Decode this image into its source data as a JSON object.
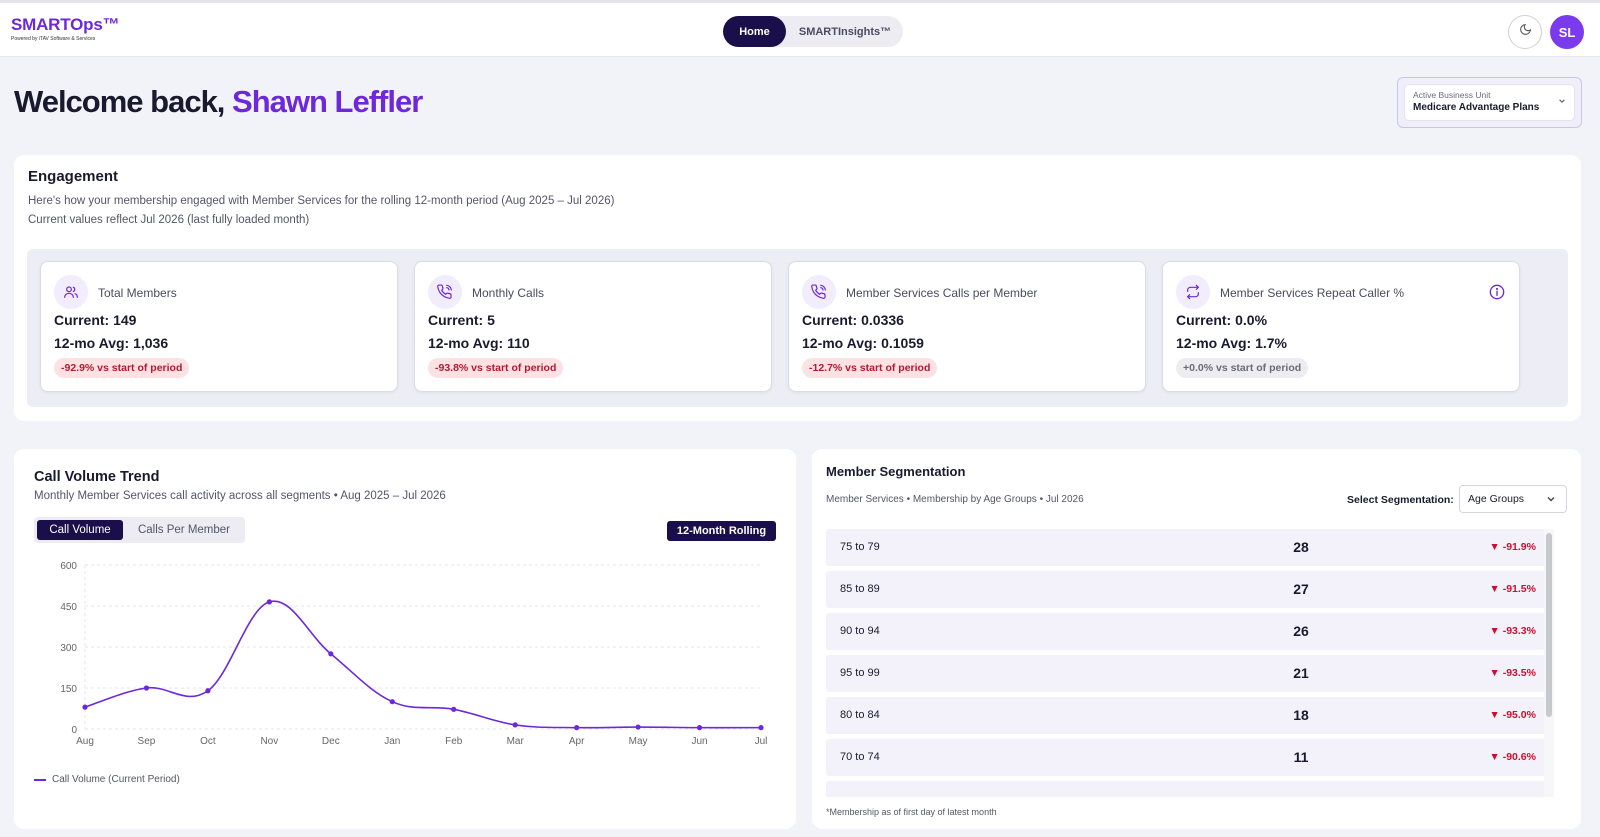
{
  "header": {
    "logo": "SMARTOps™",
    "logo_sub": "Powered by iTAV Software & Services",
    "nav": [
      {
        "label": "Home",
        "active": true
      },
      {
        "label": "SMARTInsights™",
        "active": false
      }
    ],
    "avatar_initials": "SL",
    "theme_icon": "moon-icon"
  },
  "welcome": {
    "prefix": "Welcome back,",
    "name": "Shawn Leffler"
  },
  "business_unit": {
    "label": "Active Business Unit",
    "value": "Medicare Advantage Plans"
  },
  "engagement": {
    "title": "Engagement",
    "subtitle_line1": "Here's how your membership engaged with Member Services for the rolling 12-month period (Aug 2025 – Jul 2026)",
    "subtitle_line2": "Current values reflect Jul 2026 (last fully loaded month)",
    "kpis": [
      {
        "icon": "users-icon",
        "label": "Total Members",
        "current": "Current: 149",
        "avg": "12-mo Avg: 1,036",
        "change": "-92.9% vs start of period",
        "tone": "negative"
      },
      {
        "icon": "phone-icon",
        "label": "Monthly Calls",
        "current": "Current: 5",
        "avg": "12-mo Avg: 110",
        "change": "-93.8% vs start of period",
        "tone": "negative"
      },
      {
        "icon": "phone-icon",
        "label": "Member Services Calls per Member",
        "current": "Current: 0.0336",
        "avg": "12-mo Avg: 0.1059",
        "change": "-12.7% vs start of period",
        "tone": "negative"
      },
      {
        "icon": "repeat-icon",
        "label": "Member Services Repeat Caller %",
        "current": "Current: 0.0%",
        "avg": "12-mo Avg: 1.7%",
        "change": "+0.0% vs start of period",
        "tone": "neutral",
        "info_icon": "info-icon"
      }
    ]
  },
  "call_volume": {
    "title": "Call Volume Trend",
    "subtitle": "Monthly Member Services call activity across all segments • Aug 2025 – Jul 2026",
    "toggle": [
      "Call Volume",
      "Calls Per Member"
    ],
    "rolling_label": "12-Month Rolling",
    "legend": "Call Volume (Current Period)"
  },
  "chart_data": {
    "type": "line",
    "categories": [
      "Aug",
      "Sep",
      "Oct",
      "Nov",
      "Dec",
      "Jan",
      "Feb",
      "Mar",
      "Apr",
      "May",
      "Jun",
      "Jul"
    ],
    "series": [
      {
        "name": "Call Volume (Current Period)",
        "values": [
          80,
          150,
          140,
          465,
          275,
          100,
          72,
          15,
          5,
          7,
          5,
          5
        ]
      }
    ],
    "yticks": [
      0,
      150,
      300,
      450,
      600
    ],
    "ylim": [
      0,
      600
    ],
    "grid": true,
    "legend_position": "bottom-left",
    "color": "#6d28d9"
  },
  "segmentation": {
    "title": "Member Segmentation",
    "subtitle": "Member Services • Membership by Age Groups • Jul 2026",
    "select_label": "Select Segmentation:",
    "select_value": "Age Groups",
    "rows": [
      {
        "label": "75 to 79",
        "value": "28",
        "change": "▼ -91.9%"
      },
      {
        "label": "85 to 89",
        "value": "27",
        "change": "▼ -91.5%"
      },
      {
        "label": "90 to 94",
        "value": "26",
        "change": "▼ -93.3%"
      },
      {
        "label": "95 to 99",
        "value": "21",
        "change": "▼ -93.5%"
      },
      {
        "label": "80 to 84",
        "value": "18",
        "change": "▼ -95.0%"
      },
      {
        "label": "70 to 74",
        "value": "11",
        "change": "▼ -90.6%"
      }
    ],
    "footnote": "*Membership as of first day of latest month"
  }
}
